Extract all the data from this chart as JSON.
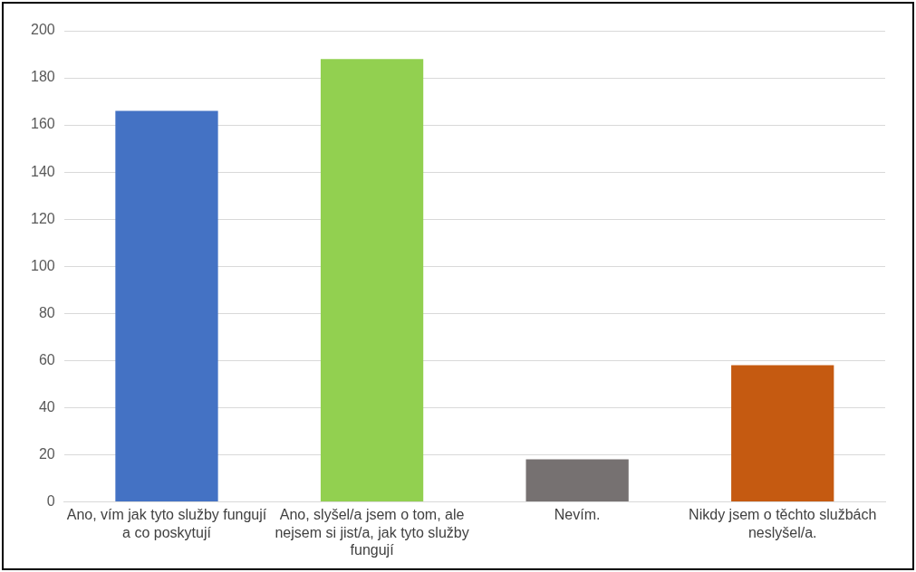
{
  "chart_data": {
    "type": "bar",
    "categories": [
      "Ano, vím jak tyto služby fungují a co poskytují",
      "Ano, slyšel/a jsem o tom, ale nejsem si jist/a, jak tyto služby fungují",
      "Nevím.",
      "Nikdy jsem o těchto službách neslyšel/a."
    ],
    "values": [
      166,
      188,
      18,
      58
    ],
    "colors": [
      "#4472c4",
      "#92d050",
      "#767171",
      "#c55a11"
    ],
    "ylim": [
      0,
      200
    ],
    "yticks": [
      0,
      20,
      40,
      60,
      80,
      100,
      120,
      140,
      160,
      180,
      200
    ],
    "grid": "y",
    "legend": false
  }
}
